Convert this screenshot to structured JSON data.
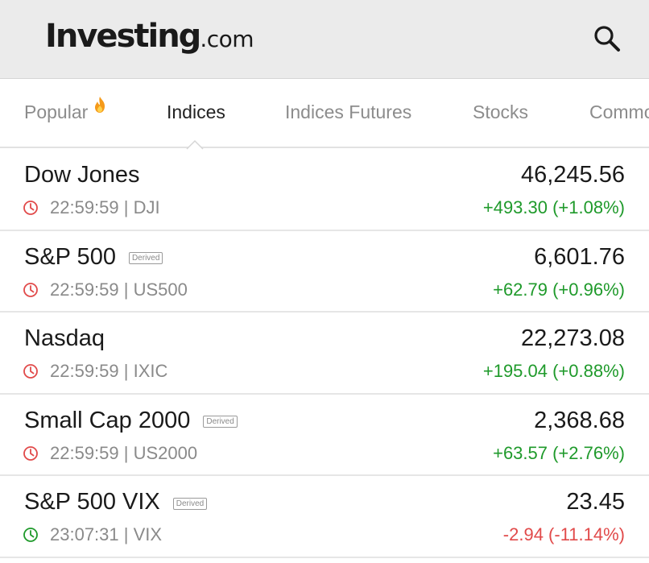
{
  "header": {
    "logo_main": "Investing",
    "logo_suffix": ".com",
    "search_icon": "search-icon"
  },
  "tabs": [
    {
      "label": "Popular",
      "active": false,
      "icon": "fire-icon"
    },
    {
      "label": "Indices",
      "active": true
    },
    {
      "label": "Indices Futures",
      "active": false
    },
    {
      "label": "Stocks",
      "active": false
    },
    {
      "label": "Commo",
      "active": false
    }
  ],
  "colors": {
    "up": "#1f9a2b",
    "down": "#e14a4a",
    "clock_closed": "#e14a4a",
    "clock_open": "#1f9a2b",
    "fire": "#f59a1a"
  },
  "indices": [
    {
      "name": "Dow Jones",
      "derived": "",
      "time": "22:59:59",
      "symbol": "DJI",
      "meta": "22:59:59 | DJI",
      "price": "46,245.56",
      "change": "+493.30 (+1.08%)",
      "direction": "up",
      "market_open": false
    },
    {
      "name": "S&P 500",
      "derived": "Derived",
      "time": "22:59:59",
      "symbol": "US500",
      "meta": "22:59:59 | US500",
      "price": "6,601.76",
      "change": "+62.79 (+0.96%)",
      "direction": "up",
      "market_open": false
    },
    {
      "name": "Nasdaq",
      "derived": "",
      "time": "22:59:59",
      "symbol": "IXIC",
      "meta": "22:59:59 | IXIC",
      "price": "22,273.08",
      "change": "+195.04 (+0.88%)",
      "direction": "up",
      "market_open": false
    },
    {
      "name": "Small Cap 2000",
      "derived": "Derived",
      "time": "22:59:59",
      "symbol": "US2000",
      "meta": "22:59:59 | US2000",
      "price": "2,368.68",
      "change": "+63.57 (+2.76%)",
      "direction": "up",
      "market_open": false
    },
    {
      "name": "S&P 500 VIX",
      "derived": "Derived",
      "time": "23:07:31",
      "symbol": "VIX",
      "meta": "23:07:31 | VIX",
      "price": "23.45",
      "change": "-2.94 (-11.14%)",
      "direction": "down",
      "market_open": true
    }
  ]
}
